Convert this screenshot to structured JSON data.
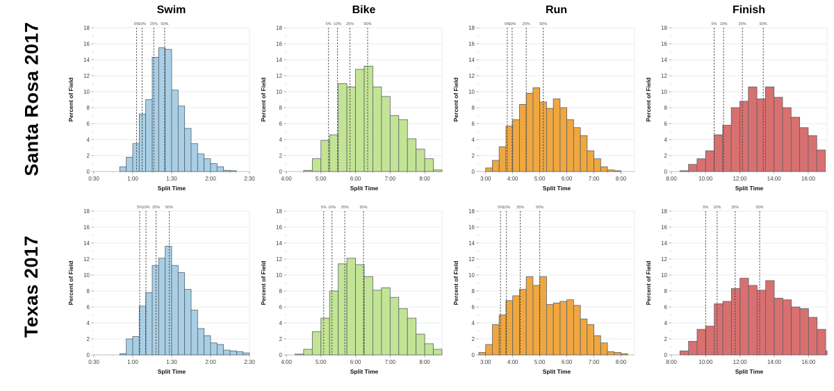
{
  "rows": [
    {
      "label": "Santa Rosa 2017"
    },
    {
      "label": "Texas 2017"
    }
  ],
  "columns": [
    "Swim",
    "Bike",
    "Run",
    "Finish"
  ],
  "axis": {
    "ylabel": "Percent of Field",
    "xlabel": "Split Time",
    "ylim": [
      0,
      18
    ],
    "ytick_step": 2,
    "grid": true
  },
  "colors": {
    "swim": "#a9cfe5",
    "bike": "#c3e494",
    "run": "#f0a73f",
    "finish": "#d97070",
    "bar_edge": "#55606a",
    "gridline": "#ebebeb",
    "axis_line": "#bfbfbf",
    "tick_text": "#444444",
    "percentile_line": "#333333",
    "percentile_text": "#555555"
  },
  "percentile_labels": [
    "5%",
    "10%",
    "25%",
    "50%"
  ],
  "chart_data": [
    {
      "type": "bar",
      "row": "Santa Rosa 2017",
      "column": "Swim",
      "color_key": "swim",
      "bin_start_hours": 0.8333,
      "bin_width_hours": 0.08333,
      "values": [
        0.6,
        1.8,
        3.5,
        7.2,
        9.0,
        14.3,
        15.5,
        15.3,
        10.2,
        8.2,
        5.4,
        3.5,
        2.2,
        1.6,
        1.0,
        0.6,
        0.15,
        0.1
      ],
      "x_range_hours": [
        0.5,
        2.5
      ],
      "x_ticks": [
        {
          "hours": 0.5,
          "label": "0:30"
        },
        {
          "hours": 1.0,
          "label": "1:00"
        },
        {
          "hours": 1.5,
          "label": "1:30"
        },
        {
          "hours": 2.0,
          "label": "2:00"
        },
        {
          "hours": 2.5,
          "label": "2:30"
        }
      ],
      "percentiles": [
        {
          "label": "5%",
          "hours": 1.05
        },
        {
          "label": "10%",
          "hours": 1.12
        },
        {
          "label": "25%",
          "hours": 1.27
        },
        {
          "label": "50%",
          "hours": 1.41
        }
      ]
    },
    {
      "type": "bar",
      "row": "Santa Rosa 2017",
      "column": "Bike",
      "color_key": "bike",
      "bin_start_hours": 4.5,
      "bin_width_hours": 0.25,
      "values": [
        0.15,
        1.6,
        3.9,
        4.6,
        11.0,
        10.6,
        12.8,
        13.2,
        10.6,
        9.4,
        7.0,
        6.5,
        4.1,
        2.8,
        1.6,
        0.2
      ],
      "x_range_hours": [
        4.0,
        8.5
      ],
      "x_ticks": [
        {
          "hours": 4.0,
          "label": "4:00"
        },
        {
          "hours": 5.0,
          "label": "5:00"
        },
        {
          "hours": 6.0,
          "label": "6:00"
        },
        {
          "hours": 7.0,
          "label": "7:00"
        },
        {
          "hours": 8.0,
          "label": "8:00"
        }
      ],
      "percentiles": [
        {
          "label": "5%",
          "hours": 5.22
        },
        {
          "label": "10%",
          "hours": 5.48
        },
        {
          "label": "25%",
          "hours": 5.84
        },
        {
          "label": "50%",
          "hours": 6.35
        }
      ]
    },
    {
      "type": "bar",
      "row": "Santa Rosa 2017",
      "column": "Run",
      "color_key": "run",
      "bin_start_hours": 3.0,
      "bin_width_hours": 0.25,
      "values": [
        0.45,
        1.4,
        3.1,
        5.7,
        6.5,
        8.4,
        9.8,
        10.5,
        8.7,
        7.9,
        9.1,
        8.0,
        6.5,
        5.5,
        4.5,
        2.6,
        1.6,
        0.6,
        0.2,
        0.1
      ],
      "x_range_hours": [
        2.75,
        8.5
      ],
      "x_ticks": [
        {
          "hours": 3.0,
          "label": "3:00"
        },
        {
          "hours": 4.0,
          "label": "4:00"
        },
        {
          "hours": 5.0,
          "label": "5:00"
        },
        {
          "hours": 6.0,
          "label": "6:00"
        },
        {
          "hours": 7.0,
          "label": "7:00"
        },
        {
          "hours": 8.0,
          "label": "8:00"
        }
      ],
      "percentiles": [
        {
          "label": "5%",
          "hours": 3.8
        },
        {
          "label": "10%",
          "hours": 3.98
        },
        {
          "label": "25%",
          "hours": 4.5
        },
        {
          "label": "50%",
          "hours": 5.13
        }
      ]
    },
    {
      "type": "bar",
      "row": "Santa Rosa 2017",
      "column": "Finish",
      "color_key": "finish",
      "bin_start_hours": 8.5,
      "bin_width_hours": 0.5,
      "values": [
        0.1,
        0.9,
        1.6,
        2.6,
        4.6,
        5.8,
        8.0,
        8.8,
        10.6,
        9.1,
        10.6,
        9.3,
        8.0,
        6.8,
        5.5,
        4.5,
        2.7
      ],
      "x_range_hours": [
        8.0,
        17.1
      ],
      "x_ticks": [
        {
          "hours": 8.0,
          "label": "8:00"
        },
        {
          "hours": 10.0,
          "label": "10:00"
        },
        {
          "hours": 12.0,
          "label": "12:00"
        },
        {
          "hours": 14.0,
          "label": "14:00"
        },
        {
          "hours": 16.0,
          "label": "16:00"
        }
      ],
      "percentiles": [
        {
          "label": "5%",
          "hours": 10.5
        },
        {
          "label": "10%",
          "hours": 11.05
        },
        {
          "label": "25%",
          "hours": 12.15
        },
        {
          "label": "50%",
          "hours": 13.37
        }
      ]
    },
    {
      "type": "bar",
      "row": "Texas 2017",
      "column": "Swim",
      "color_key": "swim",
      "bin_start_hours": 0.8333,
      "bin_width_hours": 0.08333,
      "values": [
        0.15,
        2.0,
        2.3,
        6.1,
        7.8,
        11.2,
        12.1,
        13.6,
        11.2,
        10.3,
        8.2,
        5.6,
        3.3,
        2.4,
        1.5,
        1.3,
        0.6,
        0.5,
        0.4,
        0.25
      ],
      "x_range_hours": [
        0.5,
        2.5
      ],
      "x_ticks": [
        {
          "hours": 0.5,
          "label": "0:30"
        },
        {
          "hours": 1.0,
          "label": "1:00"
        },
        {
          "hours": 1.5,
          "label": "1:30"
        },
        {
          "hours": 2.0,
          "label": "2:00"
        },
        {
          "hours": 2.5,
          "label": "2:30"
        }
      ],
      "percentiles": [
        {
          "label": "5%",
          "hours": 1.09
        },
        {
          "label": "10%",
          "hours": 1.17
        },
        {
          "label": "25%",
          "hours": 1.3
        },
        {
          "label": "50%",
          "hours": 1.47
        }
      ]
    },
    {
      "type": "bar",
      "row": "Texas 2017",
      "column": "Bike",
      "color_key": "bike",
      "bin_start_hours": 4.25,
      "bin_width_hours": 0.25,
      "values": [
        0.1,
        0.7,
        2.9,
        4.6,
        8.0,
        11.4,
        12.1,
        11.3,
        9.8,
        8.1,
        8.4,
        7.2,
        5.8,
        4.6,
        2.6,
        1.4,
        0.7
      ],
      "x_range_hours": [
        4.0,
        8.5
      ],
      "x_ticks": [
        {
          "hours": 4.0,
          "label": "4:00"
        },
        {
          "hours": 5.0,
          "label": "5:00"
        },
        {
          "hours": 6.0,
          "label": "6:00"
        },
        {
          "hours": 7.0,
          "label": "7:00"
        },
        {
          "hours": 8.0,
          "label": "8:00"
        }
      ],
      "percentiles": [
        {
          "label": "5%",
          "hours": 5.08
        },
        {
          "label": "10%",
          "hours": 5.32
        },
        {
          "label": "25%",
          "hours": 5.69
        },
        {
          "label": "50%",
          "hours": 6.23
        }
      ]
    },
    {
      "type": "bar",
      "row": "Texas 2017",
      "column": "Run",
      "color_key": "run",
      "bin_start_hours": 2.75,
      "bin_width_hours": 0.25,
      "values": [
        0.3,
        1.3,
        3.8,
        5.0,
        6.8,
        7.4,
        8.2,
        9.8,
        8.7,
        9.8,
        6.3,
        6.5,
        6.7,
        6.9,
        6.2,
        4.5,
        3.8,
        2.4,
        1.5,
        0.4,
        0.3,
        0.15
      ],
      "x_range_hours": [
        2.75,
        8.5
      ],
      "x_ticks": [
        {
          "hours": 3.0,
          "label": "3:00"
        },
        {
          "hours": 4.0,
          "label": "4:00"
        },
        {
          "hours": 5.0,
          "label": "5:00"
        },
        {
          "hours": 6.0,
          "label": "6:00"
        },
        {
          "hours": 7.0,
          "label": "7:00"
        },
        {
          "hours": 8.0,
          "label": "8:00"
        }
      ],
      "percentiles": [
        {
          "label": "5%",
          "hours": 3.55
        },
        {
          "label": "10%",
          "hours": 3.77
        },
        {
          "label": "25%",
          "hours": 4.28
        },
        {
          "label": "50%",
          "hours": 5.0
        }
      ]
    },
    {
      "type": "bar",
      "row": "Texas 2017",
      "column": "Finish",
      "color_key": "finish",
      "bin_start_hours": 8.5,
      "bin_width_hours": 0.5,
      "values": [
        0.5,
        1.7,
        3.2,
        3.6,
        6.4,
        6.7,
        8.3,
        9.6,
        8.7,
        8.1,
        9.3,
        7.1,
        6.9,
        6.0,
        5.8,
        4.7,
        3.2,
        0.5
      ],
      "x_range_hours": [
        8.0,
        17.08
      ],
      "x_ticks": [
        {
          "hours": 8.0,
          "label": "8:00"
        },
        {
          "hours": 10.0,
          "label": "10:00"
        },
        {
          "hours": 12.0,
          "label": "12:00"
        },
        {
          "hours": 14.0,
          "label": "14:00"
        },
        {
          "hours": 16.0,
          "label": "16:00"
        }
      ],
      "percentiles": [
        {
          "label": "5%",
          "hours": 10.0
        },
        {
          "label": "10%",
          "hours": 10.67
        },
        {
          "label": "25%",
          "hours": 11.72
        },
        {
          "label": "50%",
          "hours": 13.15
        }
      ]
    }
  ]
}
